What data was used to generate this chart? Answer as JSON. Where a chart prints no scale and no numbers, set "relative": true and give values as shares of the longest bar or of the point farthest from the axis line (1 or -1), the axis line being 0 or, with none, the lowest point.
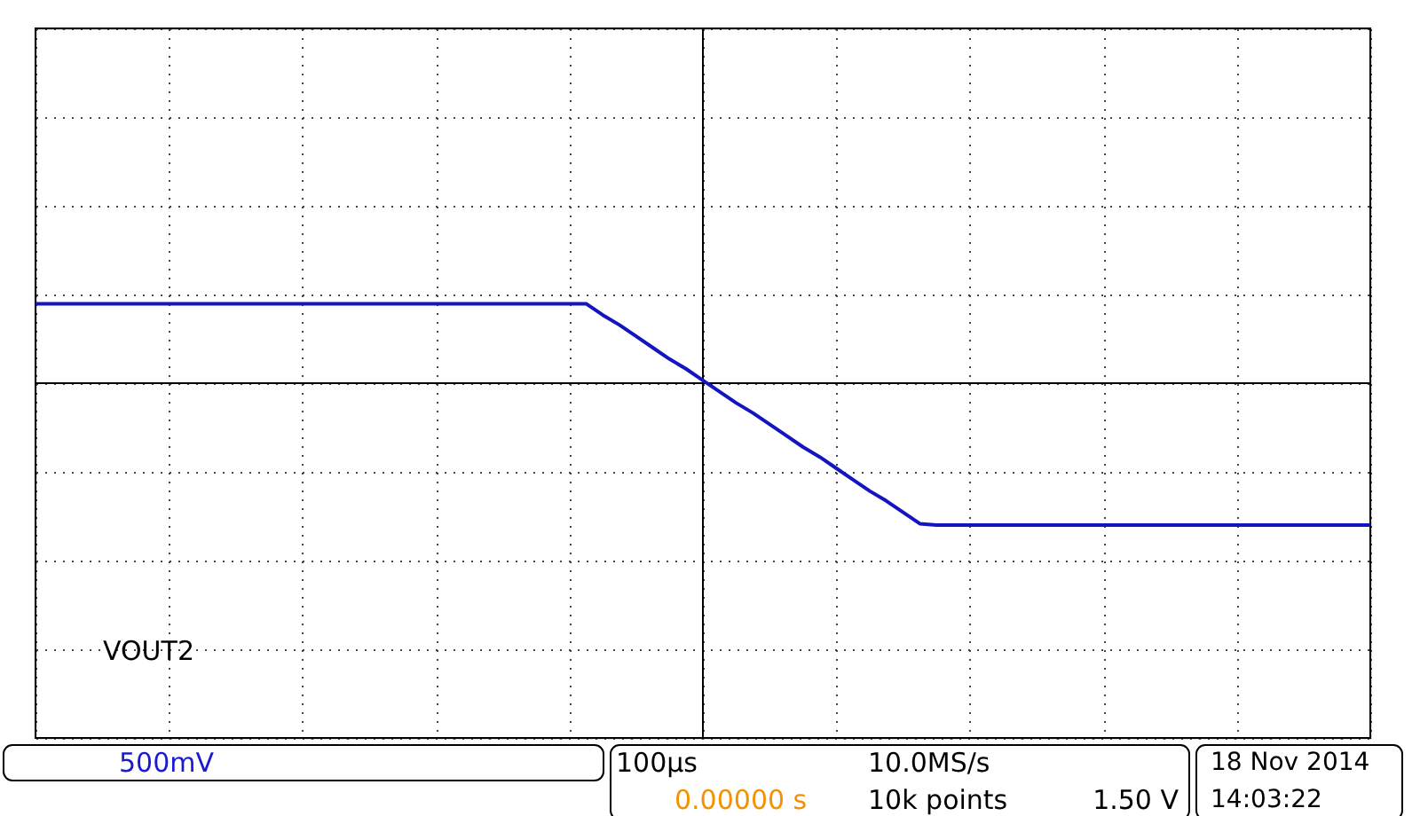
{
  "chart_data": {
    "type": "line",
    "relative": true,
    "grid": true,
    "legend": false,
    "categories": [
      null,
      null,
      null,
      null,
      null,
      null,
      null,
      null,
      null,
      null,
      null,
      null,
      null,
      null,
      null,
      null,
      null,
      null,
      null,
      null,
      null,
      null,
      null,
      null,
      null,
      null,
      null,
      null,
      null,
      null,
      null,
      null,
      null,
      null,
      null,
      null,
      null,
      null,
      null,
      null,
      null,
      null,
      null,
      null,
      null,
      null,
      null,
      null,
      null,
      null,
      null,
      null,
      null,
      null,
      null,
      null,
      null,
      null,
      null,
      null,
      null,
      null,
      null,
      null,
      null,
      null,
      null,
      null,
      null,
      null,
      null,
      null,
      null,
      null,
      null,
      null,
      null,
      null,
      null,
      null,
      null
    ],
    "series": [
      {
        "color": "#1414c0",
        "values": [
          0.56,
          0.56,
          0.56,
          0.56,
          0.56,
          0.56,
          0.56,
          0.56,
          0.56,
          0.56,
          0.56,
          0.56,
          0.56,
          0.56,
          0.56,
          0.56,
          0.56,
          0.56,
          0.56,
          0.56,
          0.56,
          0.56,
          0.56,
          0.56,
          0.56,
          0.56,
          0.56,
          0.56,
          0.56,
          0.56,
          0.56,
          0.56,
          0.56,
          0.56,
          0.48,
          0.41,
          0.33,
          0.25,
          0.17,
          0.1,
          0.02,
          -0.06,
          -0.14,
          -0.21,
          -0.29,
          -0.37,
          -0.45,
          -0.52,
          -0.6,
          -0.68,
          -0.76,
          -0.83,
          -0.91,
          -0.99,
          -1,
          -1,
          -1,
          -1,
          -1,
          -1,
          -1,
          -1,
          -1,
          -1,
          -1,
          -1,
          -1,
          -1,
          -1,
          -1,
          -1,
          -1,
          -1,
          -1,
          -1,
          -1,
          -1,
          -1,
          -1,
          -1,
          -1
        ]
      }
    ],
    "annotations": [
      "VOUT2",
      "500mV",
      "100µs",
      "10.0MS/s",
      "0.00000 s",
      "10k points",
      "1.50 V",
      "18 Nov 2014",
      "14:03:22"
    ]
  }
}
